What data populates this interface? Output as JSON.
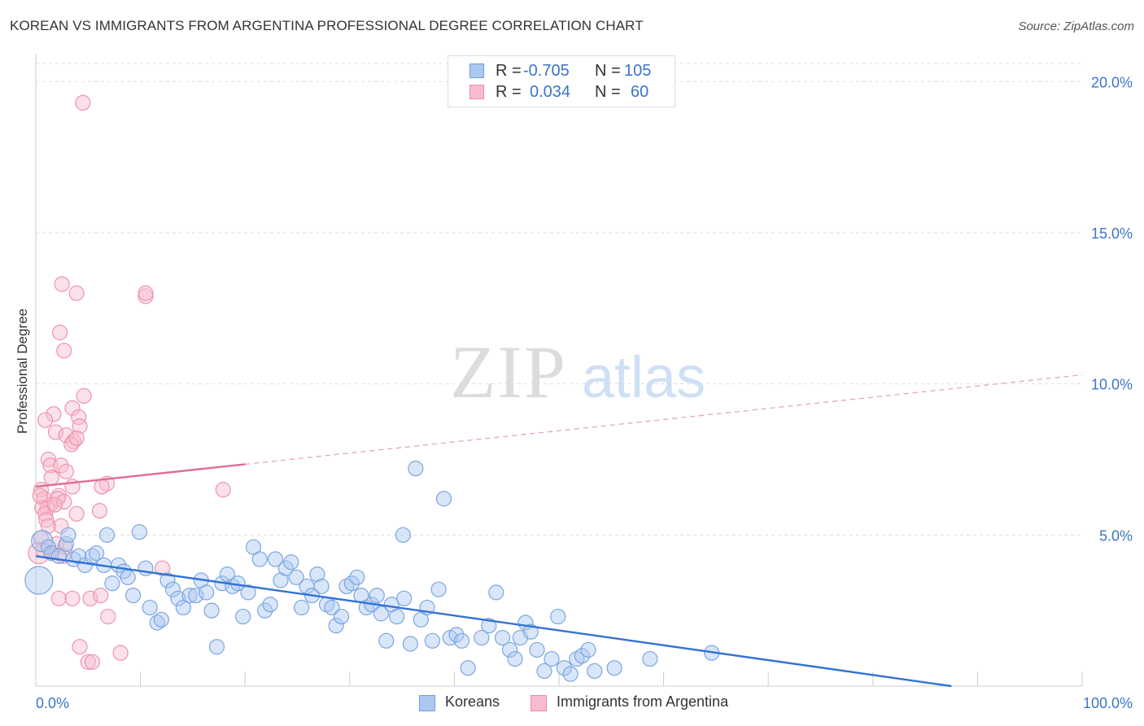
{
  "title": "KOREAN VS IMMIGRANTS FROM ARGENTINA PROFESSIONAL DEGREE CORRELATION CHART",
  "source": "Source: ZipAtlas.com",
  "watermark": {
    "zip": "ZIP",
    "atlas": "atlas"
  },
  "legend": {
    "rows": [
      {
        "r_label": "R =",
        "r_value": "-0.705",
        "n_label": "N =",
        "n_value": "105",
        "color": "#aac8f0",
        "stroke": "#6f9fe0"
      },
      {
        "r_label": "R =",
        "r_value": "0.034",
        "n_label": "N =",
        "n_value": "60",
        "color": "#f7bccd",
        "stroke": "#ec8aa7"
      }
    ]
  },
  "bottom_legend": [
    {
      "label": "Koreans",
      "color": "#aac8f0",
      "stroke": "#6f9fe0"
    },
    {
      "label": "Immigrants from Argentina",
      "color": "#f7bccd",
      "stroke": "#ec8aa7"
    }
  ],
  "chart_data": {
    "type": "scatter",
    "title": "KOREAN VS IMMIGRANTS FROM ARGENTINA PROFESSIONAL DEGREE CORRELATION CHART",
    "xlabel": "",
    "ylabel": "Professional Degree",
    "xlim": [
      0,
      100
    ],
    "ylim": [
      0,
      20.6
    ],
    "x_tick_labels": [
      "0.0%",
      "100.0%"
    ],
    "y_ticks": [
      5,
      10,
      15,
      20
    ],
    "y_tick_labels": [
      "5.0%",
      "10.0%",
      "15.0%",
      "20.0%"
    ],
    "grid": true,
    "legend_position": "top-center",
    "series": [
      {
        "name": "Koreans",
        "color": "#6f9fe0",
        "fill": "#aac8f0",
        "trend": {
          "x0": 0,
          "y0": 4.3,
          "x1": 87.5,
          "y1": 0.0,
          "solid_until": 87.5
        },
        "points": [
          [
            0.3,
            3.5
          ],
          [
            0.6,
            4.8
          ],
          [
            1.2,
            4.6
          ],
          [
            1.5,
            4.4
          ],
          [
            2.2,
            4.3
          ],
          [
            2.9,
            4.7
          ],
          [
            3.1,
            5.0
          ],
          [
            3.6,
            4.2
          ],
          [
            4.1,
            4.3
          ],
          [
            4.7,
            4.0
          ],
          [
            5.4,
            4.3
          ],
          [
            5.8,
            4.4
          ],
          [
            6.5,
            4.0
          ],
          [
            6.8,
            5.0
          ],
          [
            7.3,
            3.4
          ],
          [
            7.9,
            4.0
          ],
          [
            8.4,
            3.8
          ],
          [
            8.8,
            3.6
          ],
          [
            9.3,
            3.0
          ],
          [
            9.9,
            5.1
          ],
          [
            10.5,
            3.9
          ],
          [
            10.9,
            2.6
          ],
          [
            11.6,
            2.1
          ],
          [
            12.0,
            2.2
          ],
          [
            12.6,
            3.5
          ],
          [
            13.1,
            3.2
          ],
          [
            13.6,
            2.9
          ],
          [
            14.1,
            2.6
          ],
          [
            14.7,
            3.0
          ],
          [
            15.3,
            3.0
          ],
          [
            15.8,
            3.5
          ],
          [
            16.3,
            3.1
          ],
          [
            16.8,
            2.5
          ],
          [
            17.3,
            1.3
          ],
          [
            17.8,
            3.4
          ],
          [
            18.3,
            3.7
          ],
          [
            18.8,
            3.3
          ],
          [
            19.3,
            3.4
          ],
          [
            19.8,
            2.3
          ],
          [
            20.3,
            3.1
          ],
          [
            20.8,
            4.6
          ],
          [
            21.4,
            4.2
          ],
          [
            21.9,
            2.5
          ],
          [
            22.4,
            2.7
          ],
          [
            22.9,
            4.2
          ],
          [
            23.4,
            3.5
          ],
          [
            23.9,
            3.9
          ],
          [
            24.4,
            4.1
          ],
          [
            24.9,
            3.6
          ],
          [
            25.4,
            2.6
          ],
          [
            25.9,
            3.3
          ],
          [
            26.4,
            3.0
          ],
          [
            26.9,
            3.7
          ],
          [
            27.3,
            3.3
          ],
          [
            27.8,
            2.7
          ],
          [
            28.3,
            2.6
          ],
          [
            28.7,
            2.0
          ],
          [
            29.2,
            2.3
          ],
          [
            29.7,
            3.3
          ],
          [
            30.2,
            3.4
          ],
          [
            30.7,
            3.6
          ],
          [
            31.1,
            3.0
          ],
          [
            31.6,
            2.6
          ],
          [
            32.1,
            2.7
          ],
          [
            32.6,
            3.0
          ],
          [
            33.0,
            2.4
          ],
          [
            33.5,
            1.5
          ],
          [
            34.0,
            2.7
          ],
          [
            34.5,
            2.3
          ],
          [
            35.2,
            2.9
          ],
          [
            35.8,
            1.4
          ],
          [
            36.3,
            7.2
          ],
          [
            36.8,
            2.2
          ],
          [
            37.4,
            2.6
          ],
          [
            37.9,
            1.5
          ],
          [
            38.5,
            3.2
          ],
          [
            39.0,
            6.2
          ],
          [
            39.6,
            1.6
          ],
          [
            40.2,
            1.7
          ],
          [
            40.7,
            1.5
          ],
          [
            41.3,
            0.6
          ],
          [
            42.6,
            1.6
          ],
          [
            43.3,
            2.0
          ],
          [
            44.0,
            3.1
          ],
          [
            44.6,
            1.6
          ],
          [
            45.3,
            1.2
          ],
          [
            45.8,
            0.9
          ],
          [
            46.3,
            1.6
          ],
          [
            46.8,
            2.1
          ],
          [
            47.3,
            1.8
          ],
          [
            47.9,
            1.2
          ],
          [
            48.6,
            0.5
          ],
          [
            49.3,
            0.9
          ],
          [
            49.9,
            2.3
          ],
          [
            50.5,
            0.6
          ],
          [
            51.1,
            0.4
          ],
          [
            51.7,
            0.9
          ],
          [
            52.2,
            1.0
          ],
          [
            52.8,
            1.2
          ],
          [
            53.4,
            0.5
          ],
          [
            55.3,
            0.6
          ],
          [
            58.7,
            0.9
          ],
          [
            64.6,
            1.1
          ],
          [
            35.1,
            5.0
          ]
        ]
      },
      {
        "name": "Immigrants from Argentina",
        "color": "#e06c94",
        "fill": "#f7bccd",
        "trend": {
          "x0": 0,
          "y0": 6.6,
          "x1": 100,
          "y1": 10.3,
          "solid_until": 20
        },
        "points": [
          [
            4.5,
            19.3
          ],
          [
            2.5,
            13.3
          ],
          [
            3.9,
            13.0
          ],
          [
            10.5,
            12.9
          ],
          [
            10.5,
            13.0
          ],
          [
            2.3,
            11.7
          ],
          [
            2.7,
            11.1
          ],
          [
            4.6,
            9.6
          ],
          [
            3.5,
            9.2
          ],
          [
            1.7,
            9.0
          ],
          [
            4.1,
            8.9
          ],
          [
            0.9,
            8.8
          ],
          [
            4.2,
            8.6
          ],
          [
            1.9,
            8.4
          ],
          [
            2.9,
            8.3
          ],
          [
            3.6,
            8.1
          ],
          [
            3.4,
            8.0
          ],
          [
            3.9,
            8.2
          ],
          [
            1.2,
            7.5
          ],
          [
            1.4,
            7.3
          ],
          [
            2.4,
            7.3
          ],
          [
            2.9,
            7.1
          ],
          [
            1.5,
            6.9
          ],
          [
            6.8,
            6.7
          ],
          [
            17.9,
            6.5
          ],
          [
            0.5,
            6.5
          ],
          [
            3.5,
            6.6
          ],
          [
            6.3,
            6.6
          ],
          [
            2.2,
            6.3
          ],
          [
            0.8,
            6.2
          ],
          [
            1.4,
            6.0
          ],
          [
            1.1,
            5.9
          ],
          [
            2.1,
            6.2
          ],
          [
            2.7,
            6.1
          ],
          [
            0.6,
            5.9
          ],
          [
            0.9,
            5.7
          ],
          [
            1.0,
            5.5
          ],
          [
            3.9,
            5.7
          ],
          [
            1.2,
            5.3
          ],
          [
            2.4,
            5.3
          ],
          [
            6.1,
            5.8
          ],
          [
            0.5,
            4.9
          ],
          [
            0.7,
            4.5
          ],
          [
            1.5,
            4.4
          ],
          [
            2.0,
            4.7
          ],
          [
            2.8,
            4.6
          ],
          [
            2.2,
            2.9
          ],
          [
            3.5,
            2.9
          ],
          [
            5.2,
            2.9
          ],
          [
            6.2,
            3.0
          ],
          [
            6.9,
            2.3
          ],
          [
            4.2,
            1.3
          ],
          [
            5.0,
            0.8
          ],
          [
            5.4,
            0.8
          ],
          [
            8.1,
            1.1
          ],
          [
            12.1,
            3.9
          ],
          [
            0.3,
            4.4
          ],
          [
            1.8,
            6.0
          ],
          [
            0.4,
            6.3
          ],
          [
            2.6,
            4.3
          ]
        ]
      }
    ]
  }
}
